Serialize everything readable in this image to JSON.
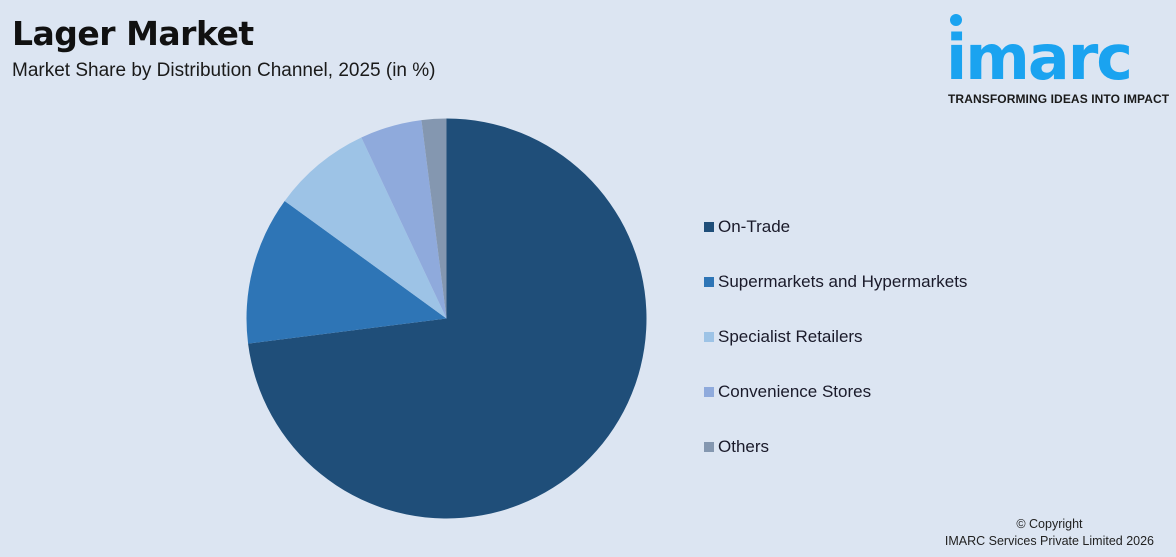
{
  "header": {
    "title": "Lager Market",
    "subtitle": "Market Share by Distribution Channel, 2025 (in %)"
  },
  "logo": {
    "wordmark": "imarc",
    "tagline": "TRANSFORMING IDEAS INTO IMPACT",
    "color": "#1aa3f0"
  },
  "footer": {
    "copyright_line1": "© Copyright",
    "copyright_line2": "IMARC Services Private Limited 2026"
  },
  "chart_data": {
    "type": "pie",
    "title": "Lager Market",
    "subtitle": "Market Share by Distribution Channel, 2025 (in %)",
    "categories": [
      "On-Trade",
      "Supermarkets and Hypermarkets",
      "Specialist Retailers",
      "Convenience Stores",
      "Others"
    ],
    "values": [
      73,
      12,
      8,
      5,
      2
    ],
    "colors": [
      "#1f4e79",
      "#2e75b6",
      "#9dc3e6",
      "#8faadc",
      "#8497b0"
    ],
    "start_angle": "12 o'clock, clockwise",
    "legend_position": "right",
    "data_labels": false
  }
}
